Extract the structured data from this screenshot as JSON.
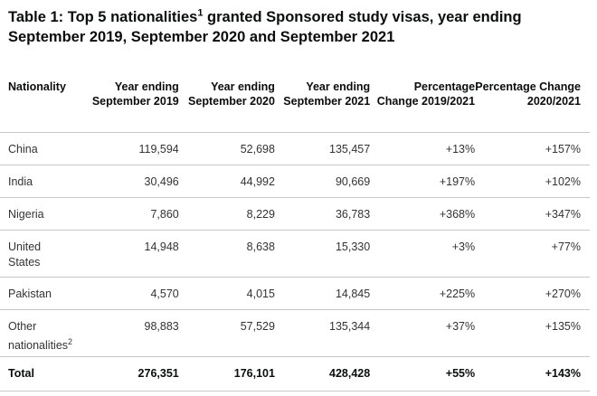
{
  "title": {
    "prefix": "Table 1: Top 5 nationalities",
    "footnote_mark": "1",
    "suffix": " granted Sponsored study visas, year ending September 2019, September 2020 and September 2021"
  },
  "table": {
    "headers": [
      "Nationality",
      "Year ending September 2019",
      "Year ending September 2020",
      "Year ending September 2021",
      "Percentage Change 2019/2021",
      "Percentage Change 2020/2021"
    ],
    "rows": [
      {
        "nationality": "China",
        "note": "",
        "values": [
          "119,594",
          "52,698",
          "135,457",
          "+13%",
          "+157%"
        ]
      },
      {
        "nationality": "India",
        "note": "",
        "values": [
          "30,496",
          "44,992",
          "90,669",
          "+197%",
          "+102%"
        ]
      },
      {
        "nationality": "Nigeria",
        "note": "",
        "values": [
          "7,860",
          "8,229",
          "36,783",
          "+368%",
          "+347%"
        ]
      },
      {
        "nationality": "United States",
        "note": "",
        "values": [
          "14,948",
          "8,638",
          "15,330",
          "+3%",
          "+77%"
        ]
      },
      {
        "nationality": "Pakistan",
        "note": "",
        "values": [
          "4,570",
          "4,015",
          "14,845",
          "+225%",
          "+270%"
        ]
      },
      {
        "nationality": "Other nationalities",
        "note": "2",
        "values": [
          "98,883",
          "57,529",
          "135,344",
          "+37%",
          "+135%"
        ]
      }
    ],
    "total": {
      "label": "Total",
      "values": [
        "276,351",
        "176,101",
        "428,428",
        "+55%",
        "+143%"
      ]
    }
  }
}
